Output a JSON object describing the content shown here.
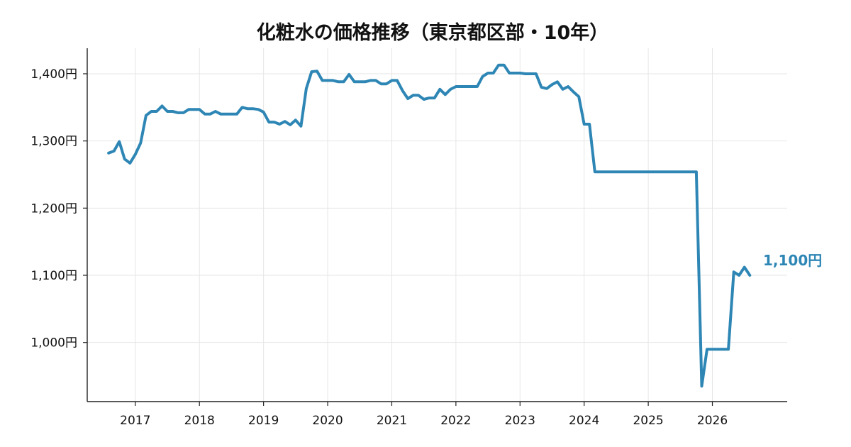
{
  "chart_data": {
    "type": "line",
    "title": "化粧水の価格推移（東京都区部・10年）",
    "xlabel": "",
    "ylabel": "",
    "x_tick_labels": [
      "2017",
      "2018",
      "2019",
      "2020",
      "2021",
      "2022",
      "2023",
      "2024",
      "2025",
      "2026"
    ],
    "y_tick_labels": [
      "1,000円",
      "1,100円",
      "1,200円",
      "1,300円",
      "1,400円"
    ],
    "y_ticks": [
      1000,
      1100,
      1200,
      1300,
      1400
    ],
    "xlim": [
      "2016-04",
      "2027-03"
    ],
    "ylim": [
      912,
      1438
    ],
    "grid": true,
    "line_color": "#2e86b5",
    "end_label": "1,100円",
    "series": [
      {
        "data": [
          [
            "2016-08",
            1282
          ],
          [
            "2016-09",
            1285
          ],
          [
            "2016-10",
            1299
          ],
          [
            "2016-11",
            1273
          ],
          [
            "2016-12",
            1267
          ],
          [
            "2017-01",
            1280
          ],
          [
            "2017-02",
            1297
          ],
          [
            "2017-03",
            1338
          ],
          [
            "2017-04",
            1344
          ],
          [
            "2017-05",
            1344
          ],
          [
            "2017-06",
            1352
          ],
          [
            "2017-07",
            1344
          ],
          [
            "2017-08",
            1344
          ],
          [
            "2017-09",
            1342
          ],
          [
            "2017-10",
            1342
          ],
          [
            "2017-11",
            1347
          ],
          [
            "2017-12",
            1347
          ],
          [
            "2018-01",
            1347
          ],
          [
            "2018-02",
            1340
          ],
          [
            "2018-03",
            1340
          ],
          [
            "2018-04",
            1344
          ],
          [
            "2018-05",
            1340
          ],
          [
            "2018-06",
            1340
          ],
          [
            "2018-07",
            1340
          ],
          [
            "2018-08",
            1340
          ],
          [
            "2018-09",
            1350
          ],
          [
            "2018-10",
            1348
          ],
          [
            "2018-11",
            1348
          ],
          [
            "2018-12",
            1347
          ],
          [
            "2019-01",
            1343
          ],
          [
            "2019-02",
            1328
          ],
          [
            "2019-03",
            1328
          ],
          [
            "2019-04",
            1325
          ],
          [
            "2019-05",
            1329
          ],
          [
            "2019-06",
            1324
          ],
          [
            "2019-07",
            1331
          ],
          [
            "2019-08",
            1322
          ],
          [
            "2019-09",
            1378
          ],
          [
            "2019-10",
            1403
          ],
          [
            "2019-11",
            1404
          ],
          [
            "2019-12",
            1390
          ],
          [
            "2020-01",
            1390
          ],
          [
            "2020-02",
            1390
          ],
          [
            "2020-03",
            1388
          ],
          [
            "2020-04",
            1388
          ],
          [
            "2020-05",
            1399
          ],
          [
            "2020-06",
            1388
          ],
          [
            "2020-07",
            1388
          ],
          [
            "2020-08",
            1388
          ],
          [
            "2020-09",
            1390
          ],
          [
            "2020-10",
            1390
          ],
          [
            "2020-11",
            1385
          ],
          [
            "2020-12",
            1385
          ],
          [
            "2021-01",
            1390
          ],
          [
            "2021-02",
            1390
          ],
          [
            "2021-03",
            1375
          ],
          [
            "2021-04",
            1363
          ],
          [
            "2021-05",
            1368
          ],
          [
            "2021-06",
            1368
          ],
          [
            "2021-07",
            1362
          ],
          [
            "2021-08",
            1364
          ],
          [
            "2021-09",
            1364
          ],
          [
            "2021-10",
            1377
          ],
          [
            "2021-11",
            1369
          ],
          [
            "2021-12",
            1377
          ],
          [
            "2022-01",
            1381
          ],
          [
            "2022-02",
            1381
          ],
          [
            "2022-03",
            1381
          ],
          [
            "2022-04",
            1381
          ],
          [
            "2022-05",
            1381
          ],
          [
            "2022-06",
            1396
          ],
          [
            "2022-07",
            1401
          ],
          [
            "2022-08",
            1401
          ],
          [
            "2022-09",
            1413
          ],
          [
            "2022-10",
            1413
          ],
          [
            "2022-11",
            1401
          ],
          [
            "2022-12",
            1401
          ],
          [
            "2023-01",
            1401
          ],
          [
            "2023-02",
            1400
          ],
          [
            "2023-03",
            1400
          ],
          [
            "2023-04",
            1400
          ],
          [
            "2023-05",
            1380
          ],
          [
            "2023-06",
            1378
          ],
          [
            "2023-07",
            1384
          ],
          [
            "2023-08",
            1388
          ],
          [
            "2023-09",
            1377
          ],
          [
            "2023-10",
            1381
          ],
          [
            "2023-11",
            1373
          ],
          [
            "2023-12",
            1366
          ],
          [
            "2024-01",
            1325
          ],
          [
            "2024-02",
            1325
          ],
          [
            "2024-03",
            1254
          ],
          [
            "2025-10",
            1254
          ],
          [
            "2025-11",
            935
          ],
          [
            "2025-12",
            990
          ],
          [
            "2026-01",
            990
          ],
          [
            "2026-02",
            990
          ],
          [
            "2026-03",
            990
          ],
          [
            "2026-04",
            990
          ],
          [
            "2026-05",
            1105
          ],
          [
            "2026-06",
            1100
          ],
          [
            "2026-07",
            1112
          ],
          [
            "2026-08",
            1100
          ]
        ]
      }
    ]
  }
}
